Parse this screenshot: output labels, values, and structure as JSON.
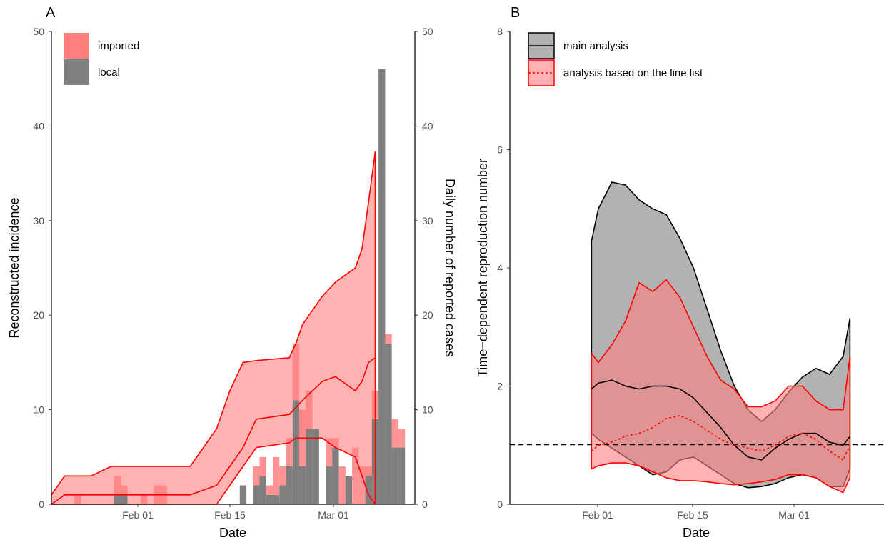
{
  "chart_data": [
    {
      "panel": "A",
      "type": "bar",
      "xlabel": "Date",
      "ylabel": "Reconstructed incidence",
      "y2label": "Daily number of reported cases",
      "ylim": [
        0,
        50
      ],
      "y2lim": [
        0,
        50
      ],
      "yticks": [
        0,
        10,
        20,
        30,
        40,
        50
      ],
      "x_date_range": [
        "2020-01-20",
        "2020-03-15"
      ],
      "xticks": [
        {
          "date": "2020-02-01",
          "label": "Feb 01"
        },
        {
          "date": "2020-02-15",
          "label": "Feb 15"
        },
        {
          "date": "2020-03-01",
          "label": "Mar 01"
        }
      ],
      "grid": false,
      "legend_position": "top-left",
      "legend": [
        {
          "label": "imported",
          "color": "#ff7f7f"
        },
        {
          "label": "local",
          "color": "#7f7f7f"
        }
      ],
      "bars": {
        "dates": [
          "2020-01-24",
          "2020-01-30",
          "2020-01-31",
          "2020-02-03",
          "2020-02-05",
          "2020-02-06",
          "2020-02-15",
          "2020-02-18",
          "2020-02-19",
          "2020-02-20",
          "2020-02-21",
          "2020-02-22",
          "2020-02-23",
          "2020-02-24",
          "2020-02-25",
          "2020-02-26",
          "2020-02-27",
          "2020-02-28",
          "2020-02-29",
          "2020-03-01",
          "2020-03-02",
          "2020-03-03",
          "2020-03-04",
          "2020-03-05",
          "2020-03-06",
          "2020-03-07",
          "2020-03-08",
          "2020-03-09",
          "2020-03-10",
          "2020-03-11",
          "2020-03-12",
          "2020-03-13"
        ],
        "local": [
          0,
          1,
          1,
          0,
          0,
          0,
          0,
          2,
          0,
          2,
          3,
          1,
          1,
          2,
          4,
          11,
          4,
          8,
          8,
          0,
          4,
          6,
          0,
          3,
          0,
          0,
          3,
          9,
          46,
          17,
          6,
          6
        ],
        "imported": [
          1,
          2,
          1,
          1,
          2,
          2,
          0,
          0,
          0,
          2,
          2,
          1,
          4,
          2,
          3,
          6,
          6,
          4,
          0,
          0,
          3,
          1,
          4,
          0,
          6,
          4,
          1,
          3,
          0,
          1,
          3,
          2
        ]
      },
      "series": [
        {
          "name": "",
          "kind": "ribbon",
          "color": "#ff0000",
          "dates": [
            "2020-01-20",
            "2020-01-22",
            "2020-01-26",
            "2020-01-29",
            "2020-02-08",
            "2020-02-10",
            "2020-02-14",
            "2020-02-16",
            "2020-02-18",
            "2020-02-20",
            "2020-02-25",
            "2020-02-26",
            "2020-02-27",
            "2020-03-01",
            "2020-03-03",
            "2020-03-06",
            "2020-03-07",
            "2020-03-08",
            "2020-03-09"
          ],
          "lower": [
            0,
            0,
            0,
            0,
            0,
            0,
            0,
            2,
            4,
            6,
            6.5,
            7,
            7,
            7,
            6,
            5,
            3,
            1,
            0
          ],
          "upper": [
            1,
            3,
            3,
            4,
            4,
            4,
            8,
            12,
            15,
            15.2,
            15.5,
            17,
            19,
            22,
            23.5,
            25,
            27,
            32,
            37.3
          ]
        },
        {
          "name": "",
          "kind": "line",
          "color": "#ff0000",
          "dates": [
            "2020-01-20",
            "2020-01-22",
            "2020-01-29",
            "2020-02-08",
            "2020-02-10",
            "2020-02-14",
            "2020-02-16",
            "2020-02-18",
            "2020-02-20",
            "2020-02-25",
            "2020-02-27",
            "2020-03-01",
            "2020-03-03",
            "2020-03-06",
            "2020-03-07",
            "2020-03-08",
            "2020-03-09"
          ],
          "values": [
            0,
            1,
            1,
            1,
            1,
            2,
            4,
            6,
            9,
            9.5,
            11,
            13,
            13.5,
            12,
            13,
            15,
            15.5
          ]
        }
      ]
    },
    {
      "panel": "B",
      "type": "area",
      "xlabel": "Date",
      "ylabel": "Time−dependent reproduction number",
      "ylim": [
        0,
        8
      ],
      "yticks": [
        0,
        2,
        4,
        6,
        8
      ],
      "x_date_range": [
        "2020-01-20",
        "2020-03-15"
      ],
      "xticks": [
        {
          "date": "2020-02-01",
          "label": "Feb 01"
        },
        {
          "date": "2020-02-15",
          "label": "Feb 15"
        },
        {
          "date": "2020-03-01",
          "label": "Mar 01"
        }
      ],
      "reference_line": {
        "y": 1,
        "style": "dashed",
        "color": "#000000"
      },
      "grid": false,
      "legend_position": "top-left",
      "legend": [
        {
          "label": "main analysis",
          "fill": "#7f7f7f",
          "line": "#000000",
          "linestyle": "solid"
        },
        {
          "label": "analysis based on the line list",
          "fill": "#ff7f7f",
          "line": "#ff0000",
          "linestyle": "dotted"
        }
      ],
      "series": [
        {
          "name": "main analysis",
          "color": "#000000",
          "fill": "#7f7f7f",
          "linestyle": "solid",
          "dates": [
            "2020-02-01",
            "2020-02-02",
            "2020-02-04",
            "2020-02-06",
            "2020-02-08",
            "2020-02-10",
            "2020-02-12",
            "2020-02-14",
            "2020-02-16",
            "2020-02-18",
            "2020-02-20",
            "2020-02-22",
            "2020-02-24",
            "2020-02-26",
            "2020-02-28",
            "2020-03-01",
            "2020-03-03",
            "2020-03-05",
            "2020-03-07",
            "2020-03-09",
            "2020-03-10"
          ],
          "mean": [
            1.95,
            2.05,
            2.1,
            2.0,
            1.95,
            2.0,
            2.0,
            1.95,
            1.8,
            1.55,
            1.3,
            1.0,
            0.8,
            0.75,
            0.95,
            1.1,
            1.2,
            1.2,
            1.05,
            1.0,
            1.15
          ],
          "lower": [
            1.2,
            1.1,
            0.95,
            0.8,
            0.65,
            0.5,
            0.55,
            0.75,
            0.8,
            0.65,
            0.5,
            0.35,
            0.28,
            0.3,
            0.35,
            0.45,
            0.5,
            0.45,
            0.3,
            0.3,
            0.6
          ],
          "upper": [
            4.45,
            5.0,
            5.45,
            5.4,
            5.15,
            5.0,
            4.9,
            4.5,
            4.0,
            3.3,
            2.6,
            2.0,
            1.6,
            1.4,
            1.6,
            1.9,
            2.15,
            2.3,
            2.2,
            2.5,
            3.15
          ]
        },
        {
          "name": "analysis based on the line list",
          "color": "#ff0000",
          "fill": "#ff7f7f",
          "linestyle": "dotted",
          "dates": [
            "2020-02-01",
            "2020-02-02",
            "2020-02-04",
            "2020-02-06",
            "2020-02-08",
            "2020-02-10",
            "2020-02-12",
            "2020-02-14",
            "2020-02-16",
            "2020-02-18",
            "2020-02-20",
            "2020-02-22",
            "2020-02-24",
            "2020-02-26",
            "2020-02-28",
            "2020-03-01",
            "2020-03-03",
            "2020-03-05",
            "2020-03-07",
            "2020-03-09",
            "2020-03-10"
          ],
          "mean": [
            0.9,
            1.0,
            1.05,
            1.15,
            1.2,
            1.3,
            1.45,
            1.5,
            1.4,
            1.25,
            1.1,
            1.0,
            0.95,
            0.9,
            1.0,
            1.15,
            1.2,
            1.1,
            0.9,
            0.75,
            1.0
          ],
          "lower": [
            0.6,
            0.65,
            0.7,
            0.7,
            0.65,
            0.55,
            0.45,
            0.4,
            0.4,
            0.38,
            0.35,
            0.33,
            0.35,
            0.38,
            0.42,
            0.5,
            0.5,
            0.45,
            0.3,
            0.2,
            0.45
          ],
          "upper": [
            2.55,
            2.4,
            2.7,
            3.1,
            3.75,
            3.6,
            3.8,
            3.5,
            3.0,
            2.5,
            2.1,
            1.95,
            1.65,
            1.65,
            1.75,
            2.0,
            2.0,
            1.75,
            1.6,
            1.6,
            2.5
          ]
        }
      ]
    }
  ],
  "panelA": {
    "tag": "A",
    "xlabel": "Date",
    "ylabel": "Reconstructed incidence",
    "y2label": "Daily number of reported cases",
    "legend": {
      "item1": "imported",
      "item2": "local"
    },
    "yticks": {
      "t0": "0",
      "t1": "10",
      "t2": "20",
      "t3": "30",
      "t4": "40",
      "t5": "50"
    },
    "xticks": {
      "t0": "Feb 01",
      "t1": "Feb 15",
      "t2": "Mar 01"
    }
  },
  "panelB": {
    "tag": "B",
    "xlabel": "Date",
    "ylabel": "Time−dependent reproduction number",
    "legend": {
      "item1": "main analysis",
      "item2": "analysis based on the line list"
    },
    "yticks": {
      "t0": "0",
      "t1": "2",
      "t2": "4",
      "t3": "6",
      "t4": "8"
    },
    "xticks": {
      "t0": "Feb 01",
      "t1": "Feb 15",
      "t2": "Mar 01"
    }
  },
  "colors": {
    "imported": "#ff7f7f",
    "local": "#7f7f7f",
    "ribbon": "#ff0000",
    "main": "#000000"
  }
}
